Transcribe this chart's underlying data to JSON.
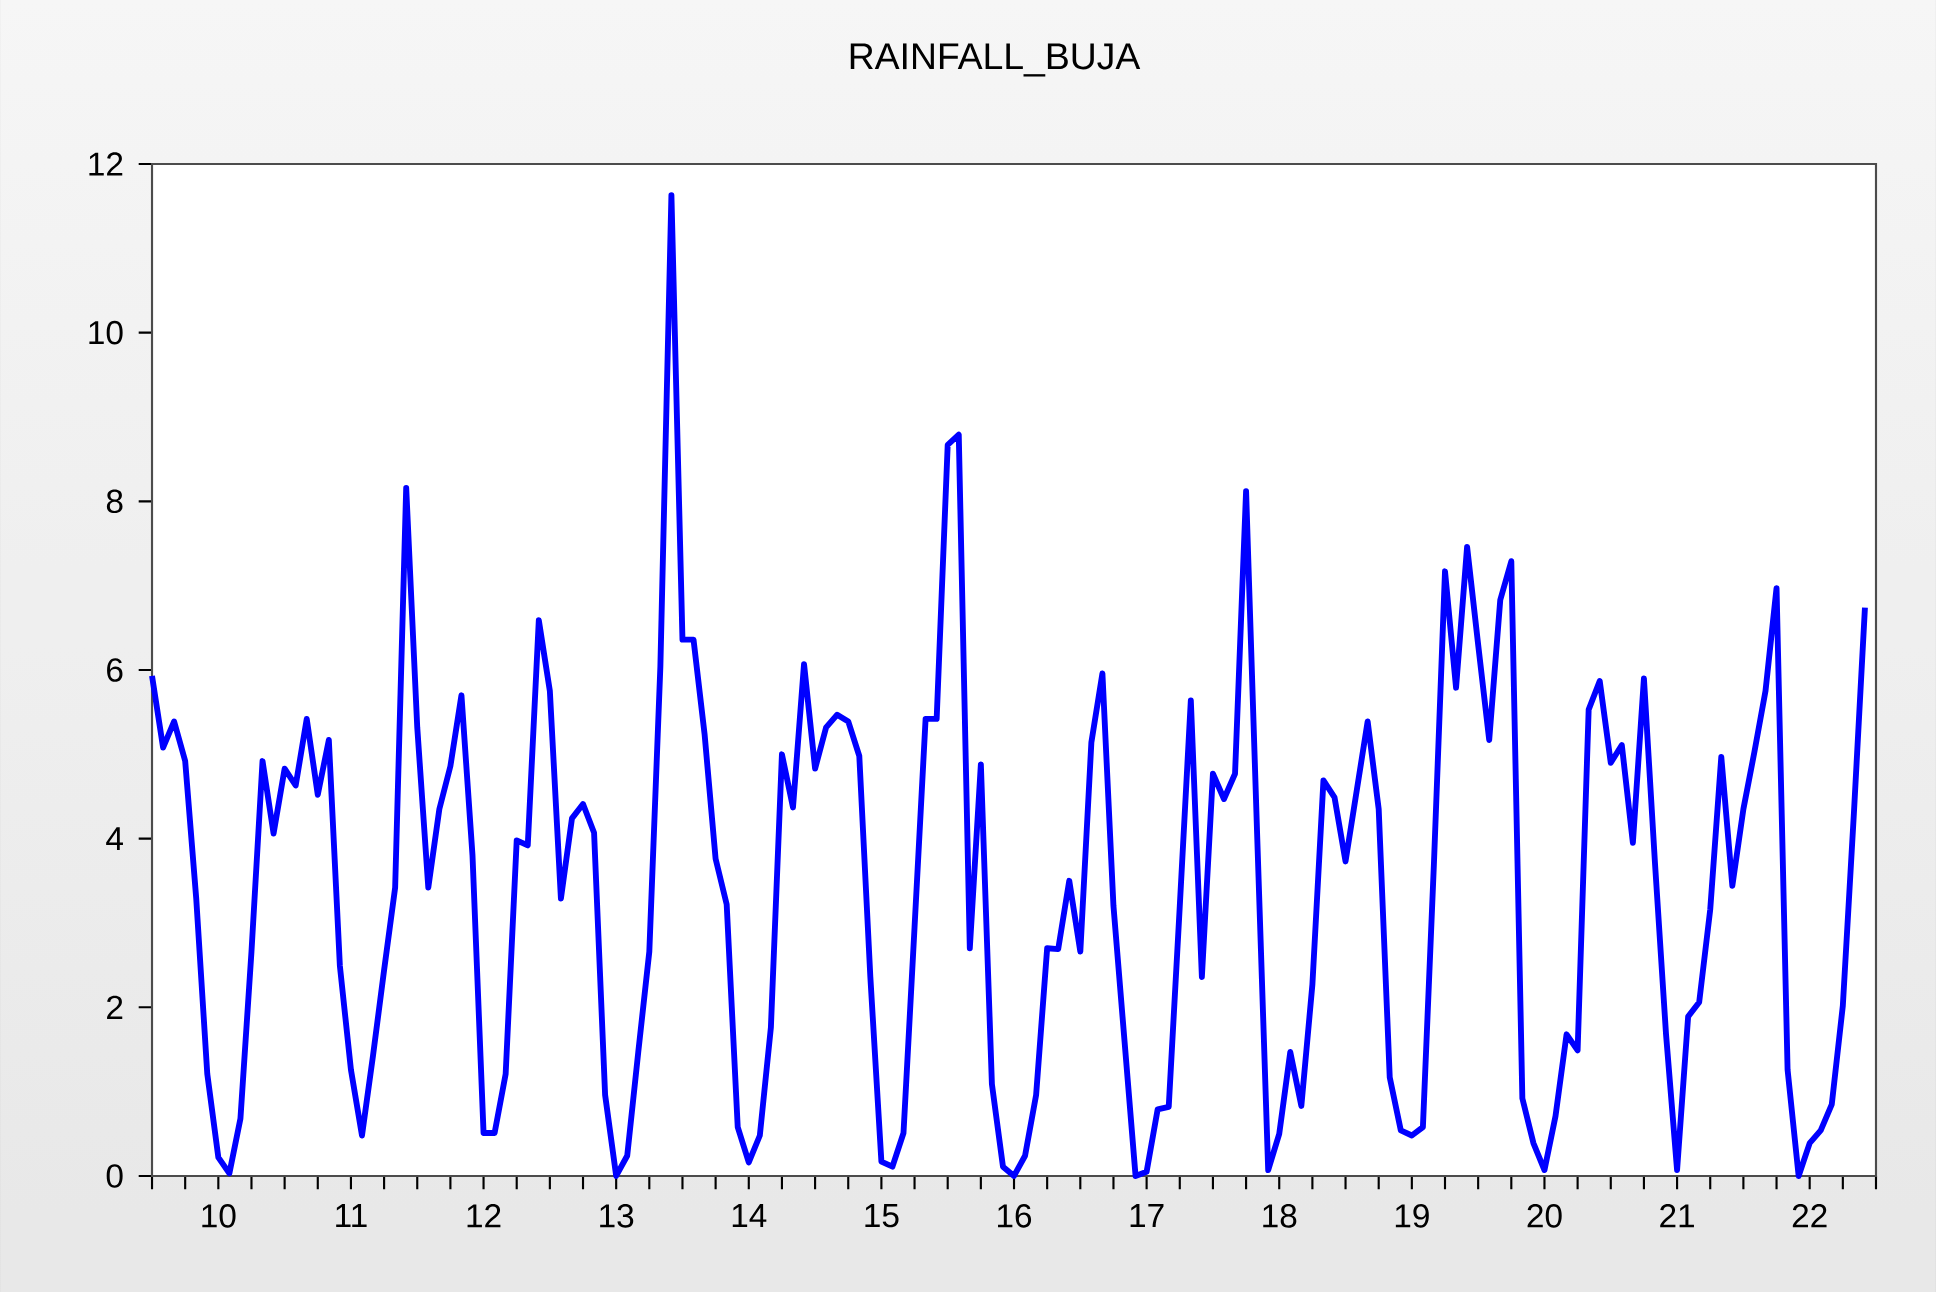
{
  "chart_data": {
    "type": "line",
    "title": "RAINFALL_BUJA",
    "x": [
      "2010-01",
      "2010-02",
      "2010-03",
      "2010-04",
      "2010-05",
      "2010-06",
      "2010-07",
      "2010-08",
      "2010-09",
      "2010-10",
      "2010-11",
      "2010-12",
      "2011-01",
      "2011-02",
      "2011-03",
      "2011-04",
      "2011-05",
      "2011-06",
      "2011-07",
      "2011-08",
      "2011-09",
      "2011-10",
      "2011-11",
      "2011-12",
      "2012-01",
      "2012-02",
      "2012-03",
      "2012-04",
      "2012-05",
      "2012-06",
      "2012-07",
      "2012-08",
      "2012-09",
      "2012-10",
      "2012-11",
      "2012-12",
      "2013-01",
      "2013-02",
      "2013-03",
      "2013-04",
      "2013-05",
      "2013-06",
      "2013-07",
      "2013-08",
      "2013-09",
      "2013-10",
      "2013-11",
      "2013-12",
      "2014-01",
      "2014-02",
      "2014-03",
      "2014-04",
      "2014-05",
      "2014-06",
      "2014-07",
      "2014-08",
      "2014-09",
      "2014-10",
      "2014-11",
      "2014-12",
      "2015-01",
      "2015-02",
      "2015-03",
      "2015-04",
      "2015-05",
      "2015-06",
      "2015-07",
      "2015-08",
      "2015-09",
      "2015-10",
      "2015-11",
      "2015-12",
      "2016-01",
      "2016-02",
      "2016-03",
      "2016-04",
      "2016-05",
      "2016-06",
      "2016-07",
      "2016-08",
      "2016-09",
      "2016-10",
      "2016-11",
      "2016-12",
      "2017-01",
      "2017-02",
      "2017-03",
      "2017-04",
      "2017-05",
      "2017-06",
      "2017-07",
      "2017-08",
      "2017-09",
      "2017-10",
      "2017-11",
      "2017-12",
      "2018-01",
      "2018-02",
      "2018-03",
      "2018-04",
      "2018-05",
      "2018-06",
      "2018-07",
      "2018-08",
      "2018-09",
      "2018-10",
      "2018-11",
      "2018-12",
      "2019-01",
      "2019-02",
      "2019-03",
      "2019-04",
      "2019-05",
      "2019-06",
      "2019-07",
      "2019-08",
      "2019-09",
      "2019-10",
      "2019-11",
      "2019-12",
      "2020-01",
      "2020-02",
      "2020-03",
      "2020-04",
      "2020-05",
      "2020-06",
      "2020-07",
      "2020-08",
      "2020-09",
      "2020-10",
      "2020-11",
      "2020-12",
      "2021-01",
      "2021-02",
      "2021-03",
      "2021-04",
      "2021-05",
      "2021-06",
      "2021-07",
      "2021-08",
      "2021-09",
      "2021-10",
      "2021-11",
      "2021-12",
      "2022-01",
      "2022-02",
      "2022-03",
      "2022-04",
      "2022-05",
      "2022-06",
      "2022-07",
      "2022-08",
      "2022-09",
      "2022-10",
      "2022-11",
      "2022-12"
    ],
    "series": [
      {
        "color": "#0000ff",
        "values": [
          5.93,
          5.08,
          5.39,
          4.92,
          3.29,
          1.21,
          0.22,
          0.03,
          0.68,
          2.66,
          4.92,
          4.06,
          4.83,
          4.63,
          5.42,
          4.52,
          5.17,
          2.49,
          1.26,
          0.48,
          1.43,
          2.44,
          3.42,
          8.16,
          5.32,
          3.42,
          4.35,
          4.86,
          5.7,
          3.8,
          0.51,
          0.51,
          1.21,
          3.98,
          3.92,
          6.59,
          5.75,
          3.29,
          4.24,
          4.41,
          4.07,
          0.96,
          0.0,
          0.24,
          1.47,
          2.66,
          6.04,
          11.63,
          6.36,
          6.36,
          5.24,
          3.76,
          3.22,
          0.58,
          0.16,
          0.48,
          1.76,
          5.0,
          4.37,
          6.07,
          4.83,
          5.32,
          5.47,
          5.39,
          4.98,
          2.36,
          0.17,
          0.11,
          0.51,
          2.95,
          5.42,
          5.42,
          8.67,
          8.79,
          2.7,
          4.88,
          1.09,
          0.11,
          0.0,
          0.24,
          0.96,
          2.7,
          2.69,
          3.5,
          2.66,
          5.14,
          5.96,
          3.2,
          1.6,
          0.0,
          0.05,
          0.79,
          0.82,
          3.2,
          5.64,
          2.36,
          4.77,
          4.47,
          4.77,
          8.12,
          4.05,
          0.07,
          0.5,
          1.47,
          0.83,
          2.27,
          4.69,
          4.49,
          3.73,
          4.56,
          5.39,
          4.35,
          1.17,
          0.54,
          0.48,
          0.58,
          3.71,
          7.17,
          5.79,
          7.46,
          6.3,
          5.17,
          6.83,
          7.29,
          0.92,
          0.39,
          0.07,
          0.71,
          1.68,
          1.49,
          5.53,
          5.87,
          4.9,
          5.11,
          3.95,
          5.9,
          3.71,
          1.68,
          0.07,
          1.89,
          2.06,
          3.16,
          4.97,
          3.44,
          4.35,
          5.03,
          5.75,
          6.97,
          1.26,
          0.0,
          0.39,
          0.54,
          0.85,
          2.02,
          4.3,
          6.74
        ]
      }
    ],
    "xlim": [
      "2010-01",
      "2023-01"
    ],
    "xticks": [
      {
        "value": "2010-01",
        "label": null
      },
      {
        "value": "2010-04",
        "label": null
      },
      {
        "value": "2010-07",
        "label": "10"
      },
      {
        "value": "2010-10",
        "label": null
      },
      {
        "value": "2011-01",
        "label": null
      },
      {
        "value": "2011-04",
        "label": null
      },
      {
        "value": "2011-07",
        "label": "11"
      },
      {
        "value": "2011-10",
        "label": null
      },
      {
        "value": "2012-01",
        "label": null
      },
      {
        "value": "2012-04",
        "label": null
      },
      {
        "value": "2012-07",
        "label": "12"
      },
      {
        "value": "2012-10",
        "label": null
      },
      {
        "value": "2013-01",
        "label": null
      },
      {
        "value": "2013-04",
        "label": null
      },
      {
        "value": "2013-07",
        "label": "13"
      },
      {
        "value": "2013-10",
        "label": null
      },
      {
        "value": "2014-01",
        "label": null
      },
      {
        "value": "2014-04",
        "label": null
      },
      {
        "value": "2014-07",
        "label": "14"
      },
      {
        "value": "2014-10",
        "label": null
      },
      {
        "value": "2015-01",
        "label": null
      },
      {
        "value": "2015-04",
        "label": null
      },
      {
        "value": "2015-07",
        "label": "15"
      },
      {
        "value": "2015-10",
        "label": null
      },
      {
        "value": "2016-01",
        "label": null
      },
      {
        "value": "2016-04",
        "label": null
      },
      {
        "value": "2016-07",
        "label": "16"
      },
      {
        "value": "2016-10",
        "label": null
      },
      {
        "value": "2017-01",
        "label": null
      },
      {
        "value": "2017-04",
        "label": null
      },
      {
        "value": "2017-07",
        "label": "17"
      },
      {
        "value": "2017-10",
        "label": null
      },
      {
        "value": "2018-01",
        "label": null
      },
      {
        "value": "2018-04",
        "label": null
      },
      {
        "value": "2018-07",
        "label": "18"
      },
      {
        "value": "2018-10",
        "label": null
      },
      {
        "value": "2019-01",
        "label": null
      },
      {
        "value": "2019-04",
        "label": null
      },
      {
        "value": "2019-07",
        "label": "19"
      },
      {
        "value": "2019-10",
        "label": null
      },
      {
        "value": "2020-01",
        "label": null
      },
      {
        "value": "2020-04",
        "label": null
      },
      {
        "value": "2020-07",
        "label": "20"
      },
      {
        "value": "2020-10",
        "label": null
      },
      {
        "value": "2021-01",
        "label": null
      },
      {
        "value": "2021-04",
        "label": null
      },
      {
        "value": "2021-07",
        "label": "21"
      },
      {
        "value": "2021-10",
        "label": null
      },
      {
        "value": "2022-01",
        "label": null
      },
      {
        "value": "2022-04",
        "label": null
      },
      {
        "value": "2022-07",
        "label": "22"
      },
      {
        "value": "2022-10",
        "label": null
      },
      {
        "value": "2023-01",
        "label": null
      }
    ],
    "ylim": [
      0,
      12
    ],
    "yticks": [
      0,
      2,
      4,
      6,
      8,
      10,
      12
    ],
    "grid": false,
    "marker": "none",
    "line_style": "solid"
  }
}
